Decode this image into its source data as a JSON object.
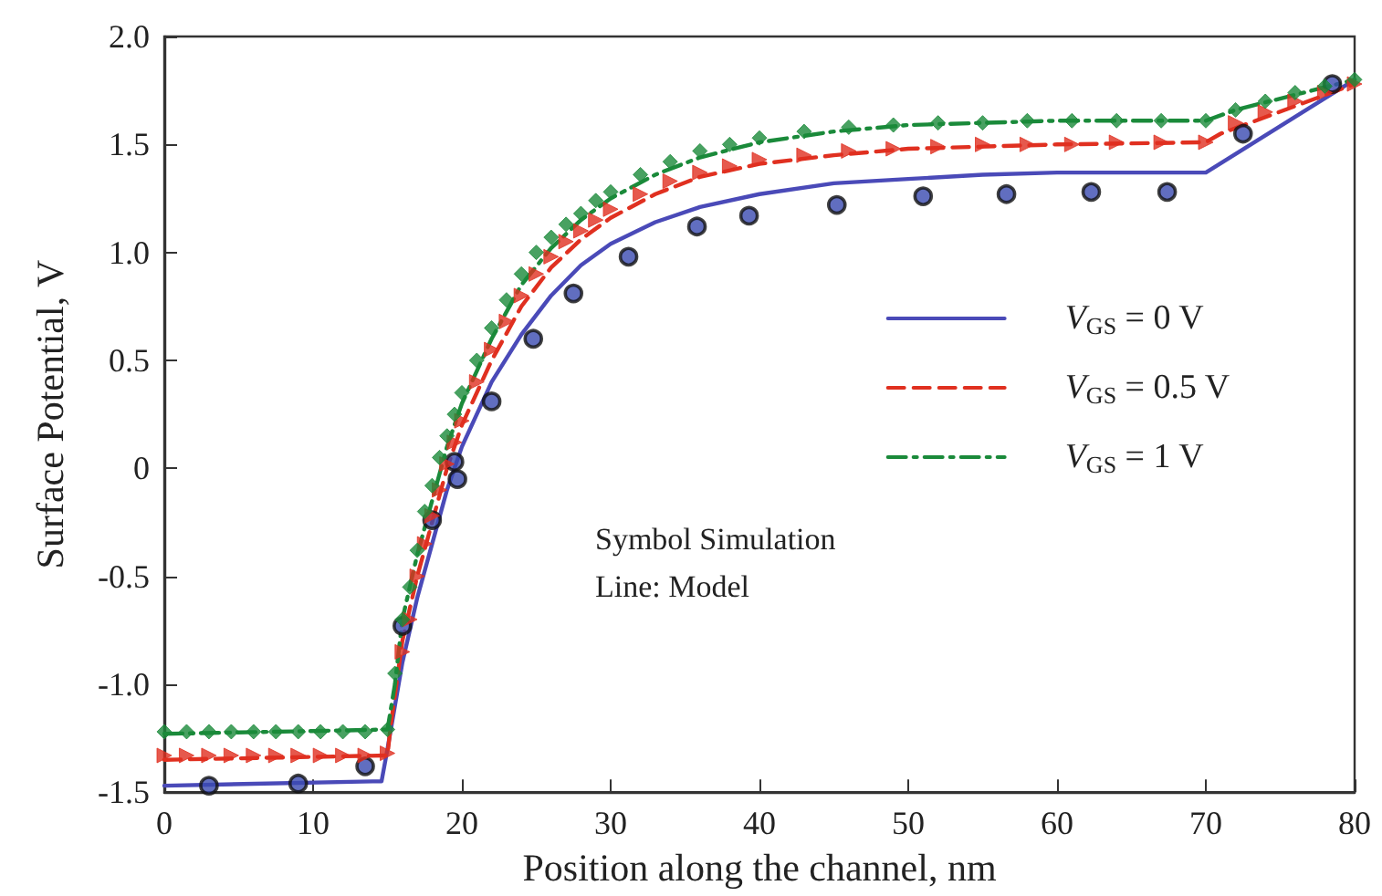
{
  "chart_data": {
    "type": "line",
    "xlabel": "Position along the channel, nm",
    "ylabel": "Surface Potential, V",
    "xlim": [
      0,
      80
    ],
    "xticks": [
      0,
      10,
      20,
      30,
      40,
      50,
      60,
      70,
      80
    ],
    "ylim": [
      -1.5,
      2.0
    ],
    "yticks": [
      {
        "value": -1.5,
        "label": "-1.5"
      },
      {
        "value": -1.0,
        "label": "-1.0"
      },
      {
        "value": -0.5,
        "label": "-0.5"
      },
      0,
      {
        "value": 0.5,
        "label": "0.5"
      },
      {
        "value": 1.0,
        "label": "1.0"
      },
      {
        "value": 1.5,
        "label": "1.5"
      },
      {
        "value": 2.0,
        "label": "2.0"
      }
    ],
    "grid": false,
    "legend": "right",
    "annotations": [
      "Symbol Simulation",
      "Line: Model"
    ],
    "series": [
      {
        "name": "V$_{GS}$ = 0 V",
        "color": "#4a4ab8",
        "line_style": "solid",
        "marker": "none",
        "x": [
          0,
          14,
          14.6,
          15,
          16,
          17,
          18,
          19,
          20,
          22,
          24,
          26,
          28,
          30,
          33,
          36,
          40,
          45,
          50,
          55,
          60,
          70,
          80
        ],
        "values": [
          -1.47,
          -1.45,
          -1.45,
          -1.3,
          -0.9,
          -0.6,
          -0.35,
          -0.1,
          0.1,
          0.4,
          0.62,
          0.8,
          0.94,
          1.04,
          1.14,
          1.21,
          1.27,
          1.32,
          1.34,
          1.36,
          1.37,
          1.37,
          1.8
        ]
      },
      {
        "name": "V$_{GS}$ = 0.5 V",
        "color": "#e03020",
        "line_style": "dashed",
        "marker": "none",
        "x": [
          0,
          15,
          15.2,
          16,
          17,
          18,
          19,
          20,
          22,
          24,
          26,
          28,
          30,
          33,
          36,
          40,
          45,
          50,
          60,
          70,
          71,
          80
        ],
        "values": [
          -1.35,
          -1.33,
          -1.2,
          -0.8,
          -0.5,
          -0.25,
          0,
          0.2,
          0.5,
          0.75,
          0.93,
          1.06,
          1.16,
          1.27,
          1.35,
          1.41,
          1.45,
          1.48,
          1.5,
          1.51,
          1.55,
          1.78
        ]
      },
      {
        "name": "V$_{GS}$ = 1 V",
        "color": "#1a8a3a",
        "line_style": "dashdot",
        "marker": "none",
        "x": [
          0,
          15,
          15.5,
          16,
          17,
          18,
          19,
          20,
          22,
          24,
          26,
          28,
          30,
          33,
          36,
          40,
          45,
          50,
          60,
          70,
          72,
          80
        ],
        "values": [
          -1.23,
          -1.21,
          -1.0,
          -0.7,
          -0.4,
          -0.15,
          0.1,
          0.3,
          0.6,
          0.85,
          1.02,
          1.15,
          1.25,
          1.36,
          1.44,
          1.51,
          1.56,
          1.59,
          1.61,
          1.61,
          1.66,
          1.8
        ]
      },
      {
        "type": "scatter",
        "color": "#3a4ab0",
        "marker": "circle",
        "x": [
          3,
          9,
          13.5,
          16,
          18,
          19.5,
          19.7,
          22,
          24.8,
          27.5,
          31.2,
          35.8,
          39.3,
          45.2,
          51,
          56.6,
          62.3,
          67.4,
          72.5,
          78.5
        ],
        "values": [
          -1.47,
          -1.46,
          -1.38,
          -0.73,
          -0.24,
          0.03,
          -0.05,
          0.31,
          0.6,
          0.81,
          0.98,
          1.12,
          1.17,
          1.22,
          1.26,
          1.27,
          1.28,
          1.28,
          1.55,
          1.78
        ]
      },
      {
        "type": "scatter",
        "color": "#e03020",
        "marker": "triangle",
        "x": [
          0,
          1.5,
          3,
          4.5,
          6,
          7.5,
          9,
          10.5,
          12,
          13.5,
          15,
          16,
          16.5,
          17,
          17.5,
          18,
          18.5,
          19,
          19.5,
          20,
          21,
          22,
          23,
          24,
          25,
          26,
          27,
          28,
          29,
          30,
          32,
          34,
          36,
          38,
          40,
          43,
          46,
          49,
          52,
          55,
          58,
          61,
          64,
          67,
          70,
          72,
          74,
          76,
          78,
          80
        ],
        "values": [
          -1.33,
          -1.33,
          -1.33,
          -1.33,
          -1.33,
          -1.33,
          -1.33,
          -1.33,
          -1.33,
          -1.33,
          -1.32,
          -0.85,
          -0.7,
          -0.5,
          -0.35,
          -0.22,
          -0.1,
          0.02,
          0.12,
          0.22,
          0.4,
          0.55,
          0.68,
          0.8,
          0.9,
          0.98,
          1.05,
          1.1,
          1.15,
          1.2,
          1.27,
          1.33,
          1.37,
          1.4,
          1.43,
          1.45,
          1.47,
          1.48,
          1.49,
          1.5,
          1.5,
          1.5,
          1.51,
          1.51,
          1.51,
          1.6,
          1.65,
          1.7,
          1.74,
          1.78
        ]
      },
      {
        "type": "scatter",
        "color": "#1a8a3a",
        "marker": "diamond",
        "x": [
          0,
          1.5,
          3,
          4.5,
          6,
          7.5,
          9,
          10.5,
          12,
          13.5,
          15,
          15.5,
          16,
          16.5,
          17,
          17.5,
          18,
          18.5,
          19,
          19.5,
          20,
          21,
          22,
          23,
          24,
          25,
          26,
          27,
          28,
          29,
          30,
          32,
          34,
          36,
          38,
          40,
          43,
          46,
          49,
          52,
          55,
          58,
          61,
          64,
          67,
          70,
          72,
          74,
          76,
          78,
          80
        ],
        "values": [
          -1.22,
          -1.22,
          -1.22,
          -1.22,
          -1.22,
          -1.22,
          -1.22,
          -1.22,
          -1.22,
          -1.22,
          -1.21,
          -0.95,
          -0.7,
          -0.55,
          -0.38,
          -0.2,
          -0.08,
          0.05,
          0.15,
          0.25,
          0.35,
          0.5,
          0.65,
          0.78,
          0.9,
          1.0,
          1.07,
          1.13,
          1.18,
          1.24,
          1.28,
          1.36,
          1.42,
          1.47,
          1.5,
          1.53,
          1.56,
          1.58,
          1.59,
          1.6,
          1.6,
          1.61,
          1.61,
          1.61,
          1.61,
          1.61,
          1.66,
          1.7,
          1.74,
          1.77,
          1.8
        ]
      }
    ]
  }
}
